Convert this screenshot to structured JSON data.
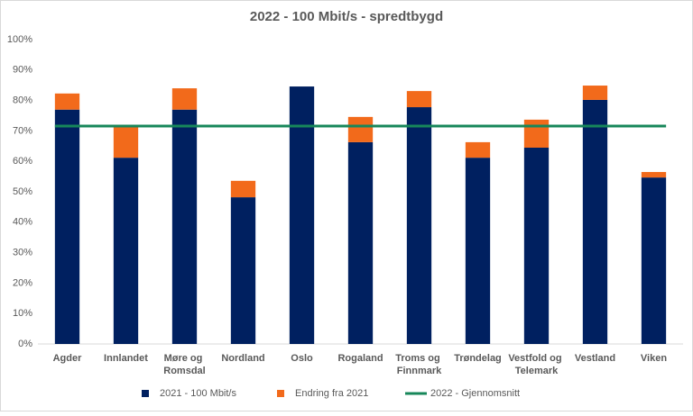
{
  "chart_data": {
    "type": "bar",
    "stacked": true,
    "title": "2022 - 100 Mbit/s - spredtbygd",
    "categories": [
      "Agder",
      "Innlandet",
      "Møre og Romsdal",
      "Nordland",
      "Oslo",
      "Rogaland",
      "Troms og Finnmark",
      "Trøndelag",
      "Vestfold og Telemark",
      "Vestland",
      "Viken"
    ],
    "series": [
      {
        "name": "2021 - 100 Mbit/s",
        "type": "bar",
        "color": "#002060",
        "values": [
          77,
          61.2,
          77,
          48.2,
          84.6,
          66.3,
          77.8,
          61.2,
          64.5,
          80.2,
          54.7
        ]
      },
      {
        "name": "Endring fra 2021",
        "type": "bar",
        "color": "#f26a1b",
        "values": [
          5.3,
          10.1,
          7,
          5.4,
          0,
          8.3,
          5.3,
          5.1,
          9.2,
          4.7,
          1.8
        ]
      },
      {
        "name": "2022 - Gjennomsnitt",
        "type": "line",
        "color": "#17875a",
        "values": [
          71.6,
          71.6,
          71.6,
          71.6,
          71.6,
          71.6,
          71.6,
          71.6,
          71.6,
          71.6,
          71.6
        ]
      }
    ],
    "ylim": [
      0,
      100
    ],
    "yticks": [
      {
        "value": 0,
        "label": "0%"
      },
      {
        "value": 10,
        "label": "10%"
      },
      {
        "value": 20,
        "label": "20%"
      },
      {
        "value": 30,
        "label": "30%"
      },
      {
        "value": 40,
        "label": "40%"
      },
      {
        "value": 50,
        "label": "50%"
      },
      {
        "value": 60,
        "label": "60%"
      },
      {
        "value": 70,
        "label": "70%"
      },
      {
        "value": 80,
        "label": "80%"
      },
      {
        "value": 90,
        "label": "90%"
      },
      {
        "value": 100,
        "label": "100%"
      }
    ],
    "legend": "bottom"
  }
}
